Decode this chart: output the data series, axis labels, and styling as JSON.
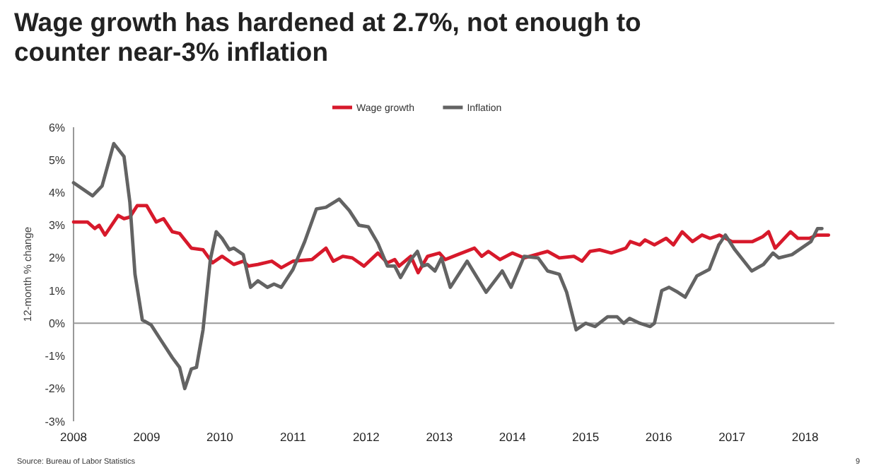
{
  "chart_data": {
    "type": "line",
    "title": "Wage growth has hardened at 2.7%, not enough to counter near-3% inflation",
    "ylabel": "12-month % change",
    "xlim": [
      2008,
      2018.4
    ],
    "xticks": [
      2008,
      2009,
      2010,
      2011,
      2012,
      2013,
      2014,
      2015,
      2016,
      2017,
      2018
    ],
    "ylim": [
      -3,
      6
    ],
    "yticks": [
      {
        "value": -3,
        "label": "-3%"
      },
      {
        "value": -2,
        "label": "-2%"
      },
      {
        "value": -1,
        "label": "-1%"
      },
      {
        "value": 0,
        "label": "0%"
      },
      {
        "value": 1,
        "label": "1%"
      },
      {
        "value": 2,
        "label": "2%"
      },
      {
        "value": 3,
        "label": "3%"
      },
      {
        "value": 4,
        "label": "4%"
      },
      {
        "value": 5,
        "label": "5%"
      },
      {
        "value": 6,
        "label": "6%"
      }
    ],
    "grid": false,
    "legend": "top",
    "marker": "none",
    "line_style": "solid",
    "ref_lines": [
      {
        "axis": "y",
        "value": 0,
        "color": "#999999"
      }
    ],
    "annotations": [
      "Source: Bureau of Labor Statistics",
      "9"
    ],
    "series": [
      {
        "name": "Wage growth",
        "color": "#d7192b",
        "x": [
          2008.0,
          2008.19,
          2008.29,
          2008.35,
          2008.43,
          2008.61,
          2008.69,
          2008.77,
          2008.87,
          2009.0,
          2009.13,
          2009.23,
          2009.35,
          2009.45,
          2009.61,
          2009.77,
          2009.9,
          2010.03,
          2010.19,
          2010.32,
          2010.39,
          2010.52,
          2010.71,
          2010.84,
          2011.0,
          2011.26,
          2011.45,
          2011.55,
          2011.68,
          2011.81,
          2011.97,
          2012.16,
          2012.29,
          2012.39,
          2012.45,
          2012.61,
          2012.71,
          2012.84,
          2013.0,
          2013.08,
          2013.25,
          2013.48,
          2013.58,
          2013.67,
          2013.83,
          2014.0,
          2014.16,
          2014.48,
          2014.64,
          2014.84,
          2014.95,
          2015.06,
          2015.19,
          2015.35,
          2015.55,
          2015.61,
          2015.74,
          2015.81,
          2015.94,
          2016.1,
          2016.2,
          2016.32,
          2016.46,
          2016.59,
          2016.7,
          2016.83,
          2017.0,
          2017.28,
          2017.42,
          2017.5,
          2017.59,
          2017.8,
          2017.9,
          2018.06,
          2018.16,
          2018.32
        ],
        "values": [
          3.1,
          3.1,
          2.9,
          3.0,
          2.7,
          3.3,
          3.2,
          3.25,
          3.6,
          3.6,
          3.1,
          3.2,
          2.8,
          2.75,
          2.3,
          2.25,
          1.85,
          2.05,
          1.8,
          1.9,
          1.75,
          1.8,
          1.9,
          1.7,
          1.9,
          1.95,
          2.3,
          1.9,
          2.05,
          2.0,
          1.75,
          2.15,
          1.85,
          1.95,
          1.75,
          2.05,
          1.55,
          2.05,
          2.15,
          1.95,
          2.1,
          2.3,
          2.05,
          2.2,
          1.95,
          2.15,
          2.0,
          2.2,
          2.0,
          2.05,
          1.9,
          2.2,
          2.25,
          2.15,
          2.3,
          2.5,
          2.4,
          2.55,
          2.4,
          2.6,
          2.4,
          2.8,
          2.5,
          2.7,
          2.6,
          2.7,
          2.5,
          2.5,
          2.65,
          2.8,
          2.3,
          2.8,
          2.6,
          2.6,
          2.7,
          2.7
        ]
      },
      {
        "name": "Inflation",
        "color": "#636363",
        "x": [
          2008.0,
          2008.26,
          2008.39,
          2008.55,
          2008.69,
          2008.77,
          2008.84,
          2008.94,
          2009.06,
          2009.19,
          2009.35,
          2009.45,
          2009.52,
          2009.61,
          2009.68,
          2009.77,
          2009.87,
          2009.95,
          2010.03,
          2010.13,
          2010.19,
          2010.32,
          2010.42,
          2010.52,
          2010.65,
          2010.74,
          2010.84,
          2011.0,
          2011.16,
          2011.32,
          2011.45,
          2011.63,
          2011.77,
          2011.9,
          2012.03,
          2012.16,
          2012.29,
          2012.39,
          2012.47,
          2012.61,
          2012.7,
          2012.77,
          2012.84,
          2012.94,
          2013.03,
          2013.15,
          2013.38,
          2013.64,
          2013.86,
          2013.98,
          2014.16,
          2014.35,
          2014.48,
          2014.64,
          2014.74,
          2014.87,
          2015.0,
          2015.13,
          2015.3,
          2015.43,
          2015.52,
          2015.6,
          2015.74,
          2015.88,
          2015.94,
          2016.04,
          2016.14,
          2016.26,
          2016.36,
          2016.52,
          2016.69,
          2016.82,
          2016.91,
          2017.04,
          2017.27,
          2017.43,
          2017.56,
          2017.64,
          2017.82,
          2017.95,
          2018.08,
          2018.17,
          2018.23
        ],
        "values": [
          4.3,
          3.9,
          4.2,
          5.5,
          5.1,
          3.7,
          1.5,
          0.1,
          -0.05,
          -0.5,
          -1.05,
          -1.35,
          -2.0,
          -1.4,
          -1.35,
          -0.2,
          1.95,
          2.8,
          2.6,
          2.25,
          2.3,
          2.1,
          1.1,
          1.3,
          1.1,
          1.2,
          1.1,
          1.65,
          2.5,
          3.5,
          3.55,
          3.8,
          3.45,
          3.0,
          2.95,
          2.45,
          1.75,
          1.75,
          1.4,
          1.95,
          2.2,
          1.75,
          1.8,
          1.6,
          2.0,
          1.1,
          1.9,
          0.95,
          1.6,
          1.1,
          2.05,
          2.0,
          1.6,
          1.5,
          0.95,
          -0.2,
          0.0,
          -0.1,
          0.2,
          0.2,
          0.0,
          0.15,
          0.0,
          -0.1,
          0.0,
          1.0,
          1.1,
          0.95,
          0.8,
          1.45,
          1.65,
          2.4,
          2.7,
          2.25,
          1.6,
          1.8,
          2.15,
          2.0,
          2.1,
          2.3,
          2.5,
          2.9,
          2.9
        ]
      }
    ]
  }
}
